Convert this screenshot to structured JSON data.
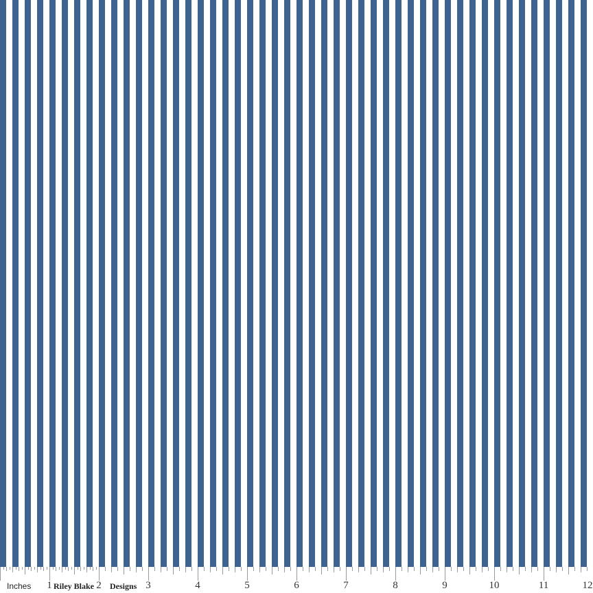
{
  "fabric": {
    "stripe_color": "#3f6390",
    "ground_color": "#ffffff",
    "stripes_per_inch": 4
  },
  "ruler": {
    "unit_label": "Inches",
    "brand_part1": "Riley Blake",
    "brand_part2": "Designs",
    "numbers": [
      "1",
      "2",
      "3",
      "4",
      "5",
      "6",
      "7",
      "8",
      "9",
      "10",
      "11",
      "12"
    ]
  }
}
